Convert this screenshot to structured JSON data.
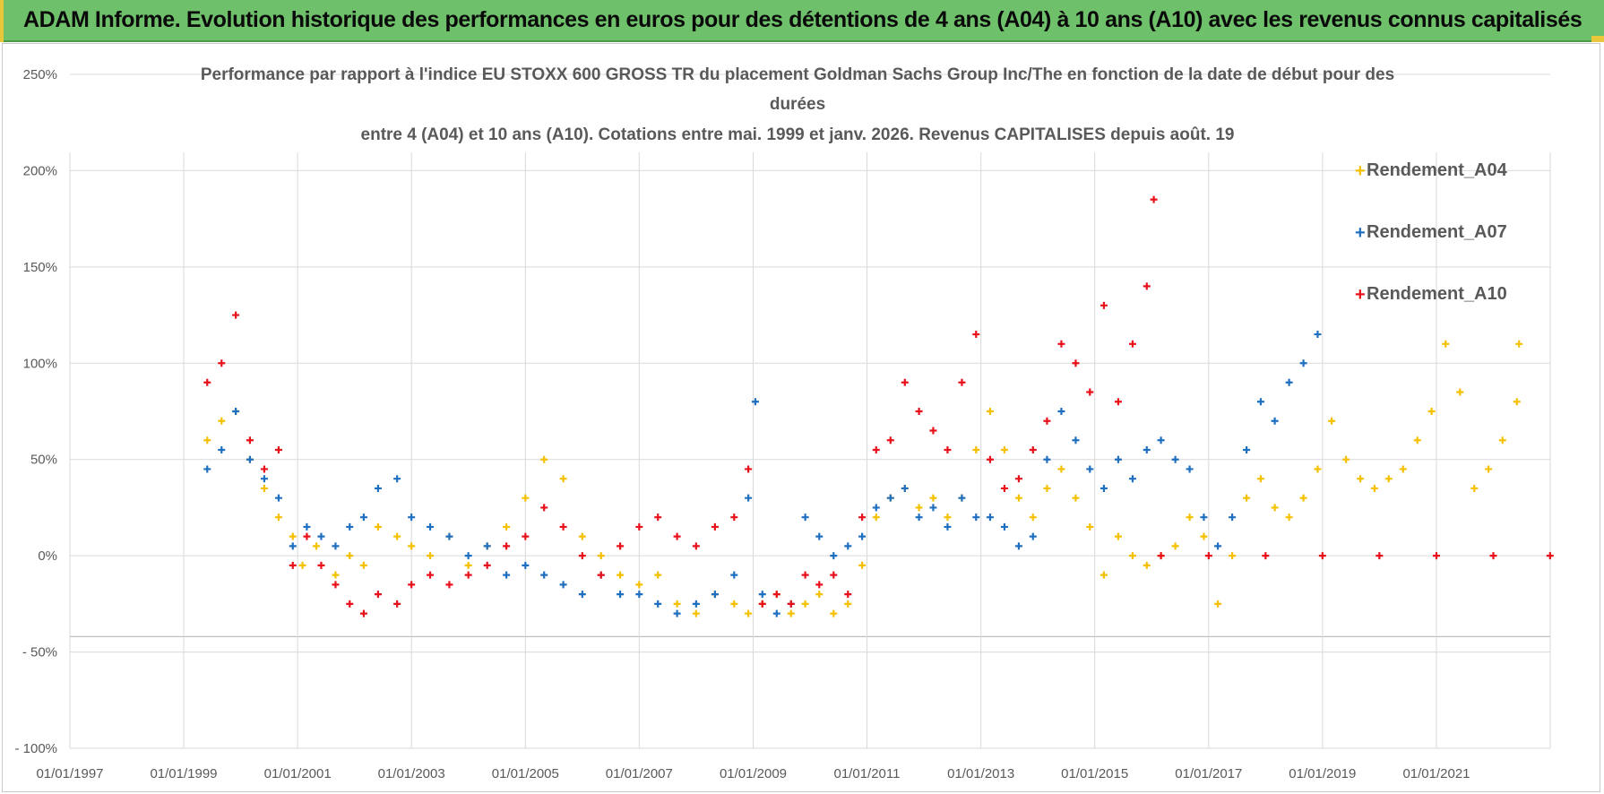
{
  "banner": {
    "title": "ADAM Informe. Evolution historique des performances en euros pour des détentions de 4 ans (A04) à 10 ans (A10) avec les revenus connus capitalisés"
  },
  "colors": {
    "banner_bg": "#6fc06b",
    "a04": "#f5c000",
    "a07": "#1f6fc0",
    "a10": "#e8101a",
    "grid": "#d9d9d9",
    "text": "#595959"
  },
  "chart_data": {
    "type": "scatter",
    "title_lines": [
      "Performance par rapport à l'indice EU STOXX 600 GROSS TR  du placement Goldman Sachs Group Inc/The en fonction de la date de début pour des",
      "durées",
      "entre 4 (A04) et 10 ans (A10).  Cotations entre mai. 1999 et janv. 2026. Revenus CAPITALISES depuis août. 19"
    ],
    "xlabel": "",
    "ylabel": "",
    "x_ticks": [
      "01/01/1997",
      "01/01/1999",
      "01/01/2001",
      "01/01/2003",
      "01/01/2005",
      "01/01/2007",
      "01/01/2009",
      "01/01/2011",
      "01/01/2013",
      "01/01/2015",
      "01/01/2017",
      "01/01/2019",
      "01/01/2021"
    ],
    "y_ticks": [
      "250%",
      "200%",
      "150%",
      "100%",
      "50%",
      "0%",
      "- 50%",
      "- 100%"
    ],
    "xlim": [
      "1997-01-01",
      "2023-01-01"
    ],
    "ylim": [
      -100,
      250
    ],
    "grid": true,
    "legend_position": "top-right",
    "marker": "+",
    "series": [
      {
        "name": "Rendement_A04",
        "color": "#f5c000",
        "points": [
          [
            "1999-06-01",
            60
          ],
          [
            "1999-09-01",
            70
          ],
          [
            "1999-12-01",
            75
          ],
          [
            "2000-03-01",
            50
          ],
          [
            "2000-06-01",
            35
          ],
          [
            "2000-09-01",
            20
          ],
          [
            "2000-12-01",
            10
          ],
          [
            "2001-02-01",
            -5
          ],
          [
            "2001-05-01",
            5
          ],
          [
            "2001-09-01",
            -10
          ],
          [
            "2001-12-01",
            0
          ],
          [
            "2002-03-01",
            -5
          ],
          [
            "2002-06-01",
            15
          ],
          [
            "2002-10-01",
            10
          ],
          [
            "2003-01-01",
            5
          ],
          [
            "2003-05-01",
            0
          ],
          [
            "2003-09-01",
            10
          ],
          [
            "2004-01-01",
            -5
          ],
          [
            "2004-05-01",
            5
          ],
          [
            "2004-09-01",
            15
          ],
          [
            "2005-01-01",
            30
          ],
          [
            "2005-05-01",
            50
          ],
          [
            "2005-09-01",
            40
          ],
          [
            "2006-01-01",
            10
          ],
          [
            "2006-05-01",
            0
          ],
          [
            "2006-09-01",
            -10
          ],
          [
            "2007-01-01",
            -15
          ],
          [
            "2007-05-01",
            -10
          ],
          [
            "2007-09-01",
            -25
          ],
          [
            "2008-01-01",
            -30
          ],
          [
            "2008-05-01",
            -20
          ],
          [
            "2008-09-01",
            -25
          ],
          [
            "2008-12-01",
            -30
          ],
          [
            "2009-03-01",
            -25
          ],
          [
            "2009-06-01",
            -20
          ],
          [
            "2009-09-01",
            -30
          ],
          [
            "2009-12-01",
            -25
          ],
          [
            "2010-03-01",
            -20
          ],
          [
            "2010-06-01",
            -30
          ],
          [
            "2010-09-01",
            -25
          ],
          [
            "2010-12-01",
            -5
          ],
          [
            "2011-03-01",
            20
          ],
          [
            "2011-06-01",
            30
          ],
          [
            "2011-09-01",
            35
          ],
          [
            "2011-12-01",
            25
          ],
          [
            "2012-03-01",
            30
          ],
          [
            "2012-06-01",
            20
          ],
          [
            "2012-09-01",
            30
          ],
          [
            "2012-12-01",
            55
          ],
          [
            "2013-03-01",
            75
          ],
          [
            "2013-06-01",
            55
          ],
          [
            "2013-09-01",
            30
          ],
          [
            "2013-12-01",
            20
          ],
          [
            "2014-03-01",
            35
          ],
          [
            "2014-06-01",
            45
          ],
          [
            "2014-09-01",
            30
          ],
          [
            "2014-12-01",
            15
          ],
          [
            "2015-03-01",
            -10
          ],
          [
            "2015-06-01",
            10
          ],
          [
            "2015-09-01",
            0
          ],
          [
            "2015-12-01",
            -5
          ],
          [
            "2016-03-01",
            0
          ],
          [
            "2016-06-01",
            5
          ],
          [
            "2016-09-01",
            20
          ],
          [
            "2016-12-01",
            10
          ],
          [
            "2017-03-01",
            -25
          ],
          [
            "2017-06-01",
            0
          ],
          [
            "2017-09-01",
            30
          ],
          [
            "2017-12-01",
            40
          ],
          [
            "2018-03-01",
            25
          ],
          [
            "2018-06-01",
            20
          ],
          [
            "2018-09-01",
            30
          ],
          [
            "2018-12-01",
            45
          ],
          [
            "2019-03-01",
            70
          ],
          [
            "2019-06-01",
            50
          ],
          [
            "2019-09-01",
            40
          ],
          [
            "2019-12-01",
            35
          ],
          [
            "2020-03-01",
            40
          ],
          [
            "2020-06-01",
            45
          ],
          [
            "2020-09-01",
            60
          ],
          [
            "2020-12-01",
            75
          ],
          [
            "2021-03-01",
            110
          ],
          [
            "2021-06-01",
            85
          ],
          [
            "2021-09-01",
            35
          ],
          [
            "2021-12-01",
            45
          ],
          [
            "2022-03-01",
            60
          ],
          [
            "2022-06-01",
            80
          ],
          [
            "2022-06-15",
            110
          ]
        ]
      },
      {
        "name": "Rendement_A07",
        "color": "#1f6fc0",
        "points": [
          [
            "1999-06-01",
            45
          ],
          [
            "1999-09-01",
            55
          ],
          [
            "1999-12-01",
            75
          ],
          [
            "2000-03-01",
            50
          ],
          [
            "2000-06-01",
            40
          ],
          [
            "2000-09-01",
            30
          ],
          [
            "2000-12-01",
            5
          ],
          [
            "2001-03-01",
            15
          ],
          [
            "2001-06-01",
            10
          ],
          [
            "2001-09-01",
            5
          ],
          [
            "2001-12-01",
            15
          ],
          [
            "2002-03-01",
            20
          ],
          [
            "2002-06-01",
            35
          ],
          [
            "2002-10-01",
            40
          ],
          [
            "2003-01-01",
            20
          ],
          [
            "2003-05-01",
            15
          ],
          [
            "2003-09-01",
            10
          ],
          [
            "2004-01-01",
            0
          ],
          [
            "2004-05-01",
            5
          ],
          [
            "2004-09-01",
            -10
          ],
          [
            "2005-01-01",
            -5
          ],
          [
            "2005-05-01",
            -10
          ],
          [
            "2005-09-01",
            -15
          ],
          [
            "2006-01-01",
            -20
          ],
          [
            "2006-05-01",
            -10
          ],
          [
            "2006-09-01",
            -20
          ],
          [
            "2007-01-01",
            -20
          ],
          [
            "2007-05-01",
            -25
          ],
          [
            "2007-09-01",
            -30
          ],
          [
            "2008-01-01",
            -25
          ],
          [
            "2008-05-01",
            -20
          ],
          [
            "2008-09-01",
            -10
          ],
          [
            "2008-12-01",
            30
          ],
          [
            "2009-01-15",
            80
          ],
          [
            "2009-03-01",
            -20
          ],
          [
            "2009-06-01",
            -30
          ],
          [
            "2009-09-01",
            -25
          ],
          [
            "2009-12-01",
            20
          ],
          [
            "2010-03-01",
            10
          ],
          [
            "2010-06-01",
            0
          ],
          [
            "2010-09-01",
            5
          ],
          [
            "2010-12-01",
            10
          ],
          [
            "2011-03-01",
            25
          ],
          [
            "2011-06-01",
            30
          ],
          [
            "2011-09-01",
            35
          ],
          [
            "2011-12-01",
            20
          ],
          [
            "2012-03-01",
            25
          ],
          [
            "2012-06-01",
            15
          ],
          [
            "2012-09-01",
            30
          ],
          [
            "2012-12-01",
            20
          ],
          [
            "2013-03-01",
            20
          ],
          [
            "2013-06-01",
            15
          ],
          [
            "2013-09-01",
            5
          ],
          [
            "2013-12-01",
            10
          ],
          [
            "2014-03-01",
            50
          ],
          [
            "2014-06-01",
            75
          ],
          [
            "2014-09-01",
            60
          ],
          [
            "2014-12-01",
            45
          ],
          [
            "2015-03-01",
            35
          ],
          [
            "2015-06-01",
            50
          ],
          [
            "2015-09-01",
            40
          ],
          [
            "2015-12-01",
            55
          ],
          [
            "2016-03-01",
            60
          ],
          [
            "2016-06-01",
            50
          ],
          [
            "2016-09-01",
            45
          ],
          [
            "2016-12-01",
            20
          ],
          [
            "2017-03-01",
            5
          ],
          [
            "2017-06-01",
            20
          ],
          [
            "2017-09-01",
            55
          ],
          [
            "2017-12-01",
            80
          ],
          [
            "2018-03-01",
            70
          ],
          [
            "2018-06-01",
            90
          ],
          [
            "2018-09-01",
            100
          ],
          [
            "2018-12-01",
            115
          ]
        ]
      },
      {
        "name": "Rendement_A10",
        "color": "#e8101a",
        "points": [
          [
            "1999-06-01",
            90
          ],
          [
            "1999-09-01",
            100
          ],
          [
            "1999-12-01",
            125
          ],
          [
            "2000-03-01",
            60
          ],
          [
            "2000-06-01",
            45
          ],
          [
            "2000-09-01",
            55
          ],
          [
            "2000-12-01",
            -5
          ],
          [
            "2001-03-01",
            10
          ],
          [
            "2001-06-01",
            -5
          ],
          [
            "2001-09-01",
            -15
          ],
          [
            "2001-12-01",
            -25
          ],
          [
            "2002-03-01",
            -30
          ],
          [
            "2002-06-01",
            -20
          ],
          [
            "2002-10-01",
            -25
          ],
          [
            "2003-01-01",
            -15
          ],
          [
            "2003-05-01",
            -10
          ],
          [
            "2003-09-01",
            -15
          ],
          [
            "2004-01-01",
            -10
          ],
          [
            "2004-05-01",
            -5
          ],
          [
            "2004-09-01",
            5
          ],
          [
            "2005-01-01",
            10
          ],
          [
            "2005-05-01",
            25
          ],
          [
            "2005-09-01",
            15
          ],
          [
            "2006-01-01",
            0
          ],
          [
            "2006-05-01",
            -10
          ],
          [
            "2006-09-01",
            5
          ],
          [
            "2007-01-01",
            15
          ],
          [
            "2007-05-01",
            20
          ],
          [
            "2007-09-01",
            10
          ],
          [
            "2008-01-01",
            5
          ],
          [
            "2008-05-01",
            15
          ],
          [
            "2008-09-01",
            20
          ],
          [
            "2008-12-01",
            45
          ],
          [
            "2009-03-01",
            -25
          ],
          [
            "2009-06-01",
            -20
          ],
          [
            "2009-09-01",
            -25
          ],
          [
            "2009-12-01",
            -10
          ],
          [
            "2010-03-01",
            -15
          ],
          [
            "2010-06-01",
            -10
          ],
          [
            "2010-09-01",
            -20
          ],
          [
            "2010-12-01",
            20
          ],
          [
            "2011-03-01",
            55
          ],
          [
            "2011-06-01",
            60
          ],
          [
            "2011-09-01",
            90
          ],
          [
            "2011-12-01",
            75
          ],
          [
            "2012-03-01",
            65
          ],
          [
            "2012-06-01",
            55
          ],
          [
            "2012-09-01",
            90
          ],
          [
            "2012-12-01",
            115
          ],
          [
            "2013-03-01",
            50
          ],
          [
            "2013-06-01",
            35
          ],
          [
            "2013-09-01",
            40
          ],
          [
            "2013-12-01",
            55
          ],
          [
            "2014-03-01",
            70
          ],
          [
            "2014-06-01",
            110
          ],
          [
            "2014-09-01",
            100
          ],
          [
            "2014-12-01",
            85
          ],
          [
            "2015-03-01",
            130
          ],
          [
            "2015-06-01",
            80
          ],
          [
            "2015-09-01",
            110
          ],
          [
            "2015-12-01",
            140
          ],
          [
            "2016-01-15",
            185
          ],
          [
            "2016-03-01",
            0
          ],
          [
            "2017-01-01",
            0
          ],
          [
            "2018-01-01",
            0
          ],
          [
            "2019-01-01",
            0
          ],
          [
            "2020-01-01",
            0
          ],
          [
            "2021-01-01",
            0
          ],
          [
            "2022-01-01",
            0
          ],
          [
            "2022-12-31",
            0
          ]
        ]
      }
    ]
  }
}
